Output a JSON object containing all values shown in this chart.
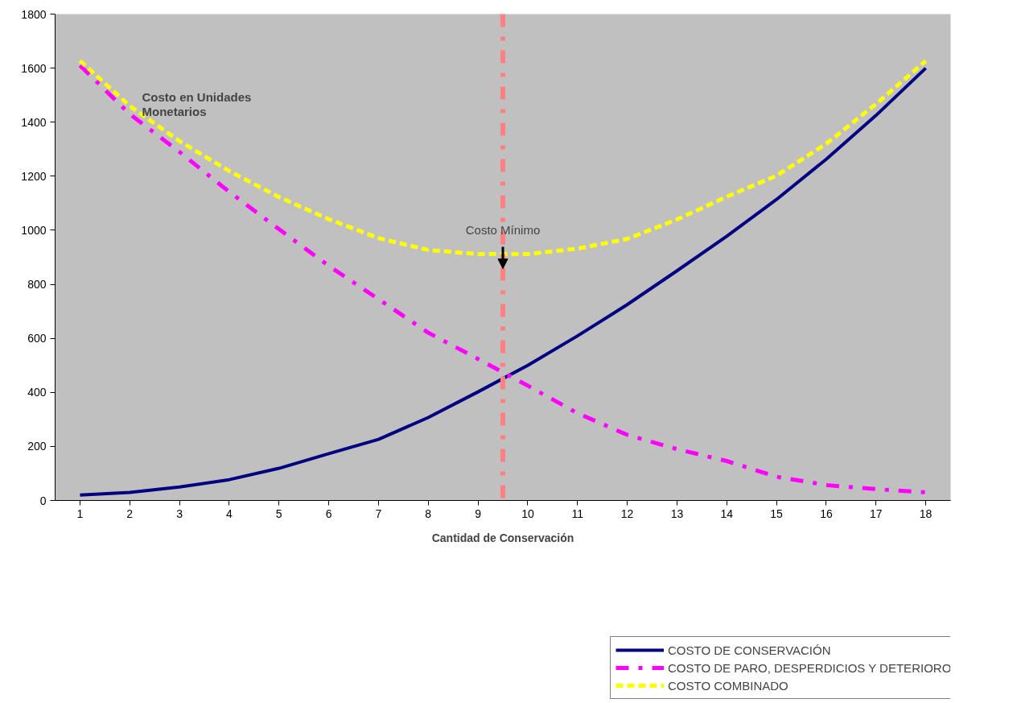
{
  "chart_data": {
    "type": "line",
    "xlabel": "Cantidad de Conservación",
    "ylabel": "Costo en Unidades Monetarios",
    "x": [
      1,
      2,
      3,
      4,
      5,
      6,
      7,
      8,
      9,
      10,
      11,
      12,
      13,
      14,
      15,
      16,
      17,
      18
    ],
    "xlim": [
      0.5,
      18.5
    ],
    "xticks": [
      1,
      2,
      3,
      4,
      5,
      6,
      7,
      8,
      9,
      10,
      11,
      12,
      13,
      14,
      15,
      16,
      17,
      18
    ],
    "ylim": [
      0,
      1800
    ],
    "yticks": [
      0,
      200,
      400,
      600,
      800,
      1000,
      1200,
      1400,
      1600,
      1800
    ],
    "grid": false,
    "legend": "bottom right",
    "marker": "none",
    "series": [
      {
        "name": "COSTO DE CONSERVACIÓN",
        "color": "#000080",
        "line_style": "solid",
        "values": [
          20,
          30,
          50,
          77,
          119,
          173,
          226,
          307,
          402,
          500,
          609,
          725,
          850,
          978,
          1114,
          1263,
          1425,
          1600
        ]
      },
      {
        "name": "COSTO DE PARO, DESPERDICIOS Y DETERIORO",
        "color": "#ff00ff",
        "line_style": "dashdot",
        "values": [
          1610,
          1430,
          1290,
          1142,
          1004,
          868,
          745,
          621,
          524,
          425,
          323,
          243,
          190,
          146,
          88,
          57,
          42,
          30
        ]
      },
      {
        "name": "COSTO COMBINADO",
        "color": "#ffff00",
        "line_style": "dashed",
        "values": [
          1627,
          1460,
          1330,
          1219,
          1123,
          1041,
          971,
          927,
          912,
          912,
          932,
          968,
          1040,
          1124,
          1202,
          1320,
          1467,
          1627
        ]
      }
    ],
    "ref_lines": [
      {
        "axis": "x",
        "value": 9.5,
        "color": "#ff8080",
        "line_style": "dashdot"
      }
    ],
    "annotations": [
      {
        "text": "Costo Mínimo",
        "x": 9.5,
        "y": 858
      }
    ]
  }
}
